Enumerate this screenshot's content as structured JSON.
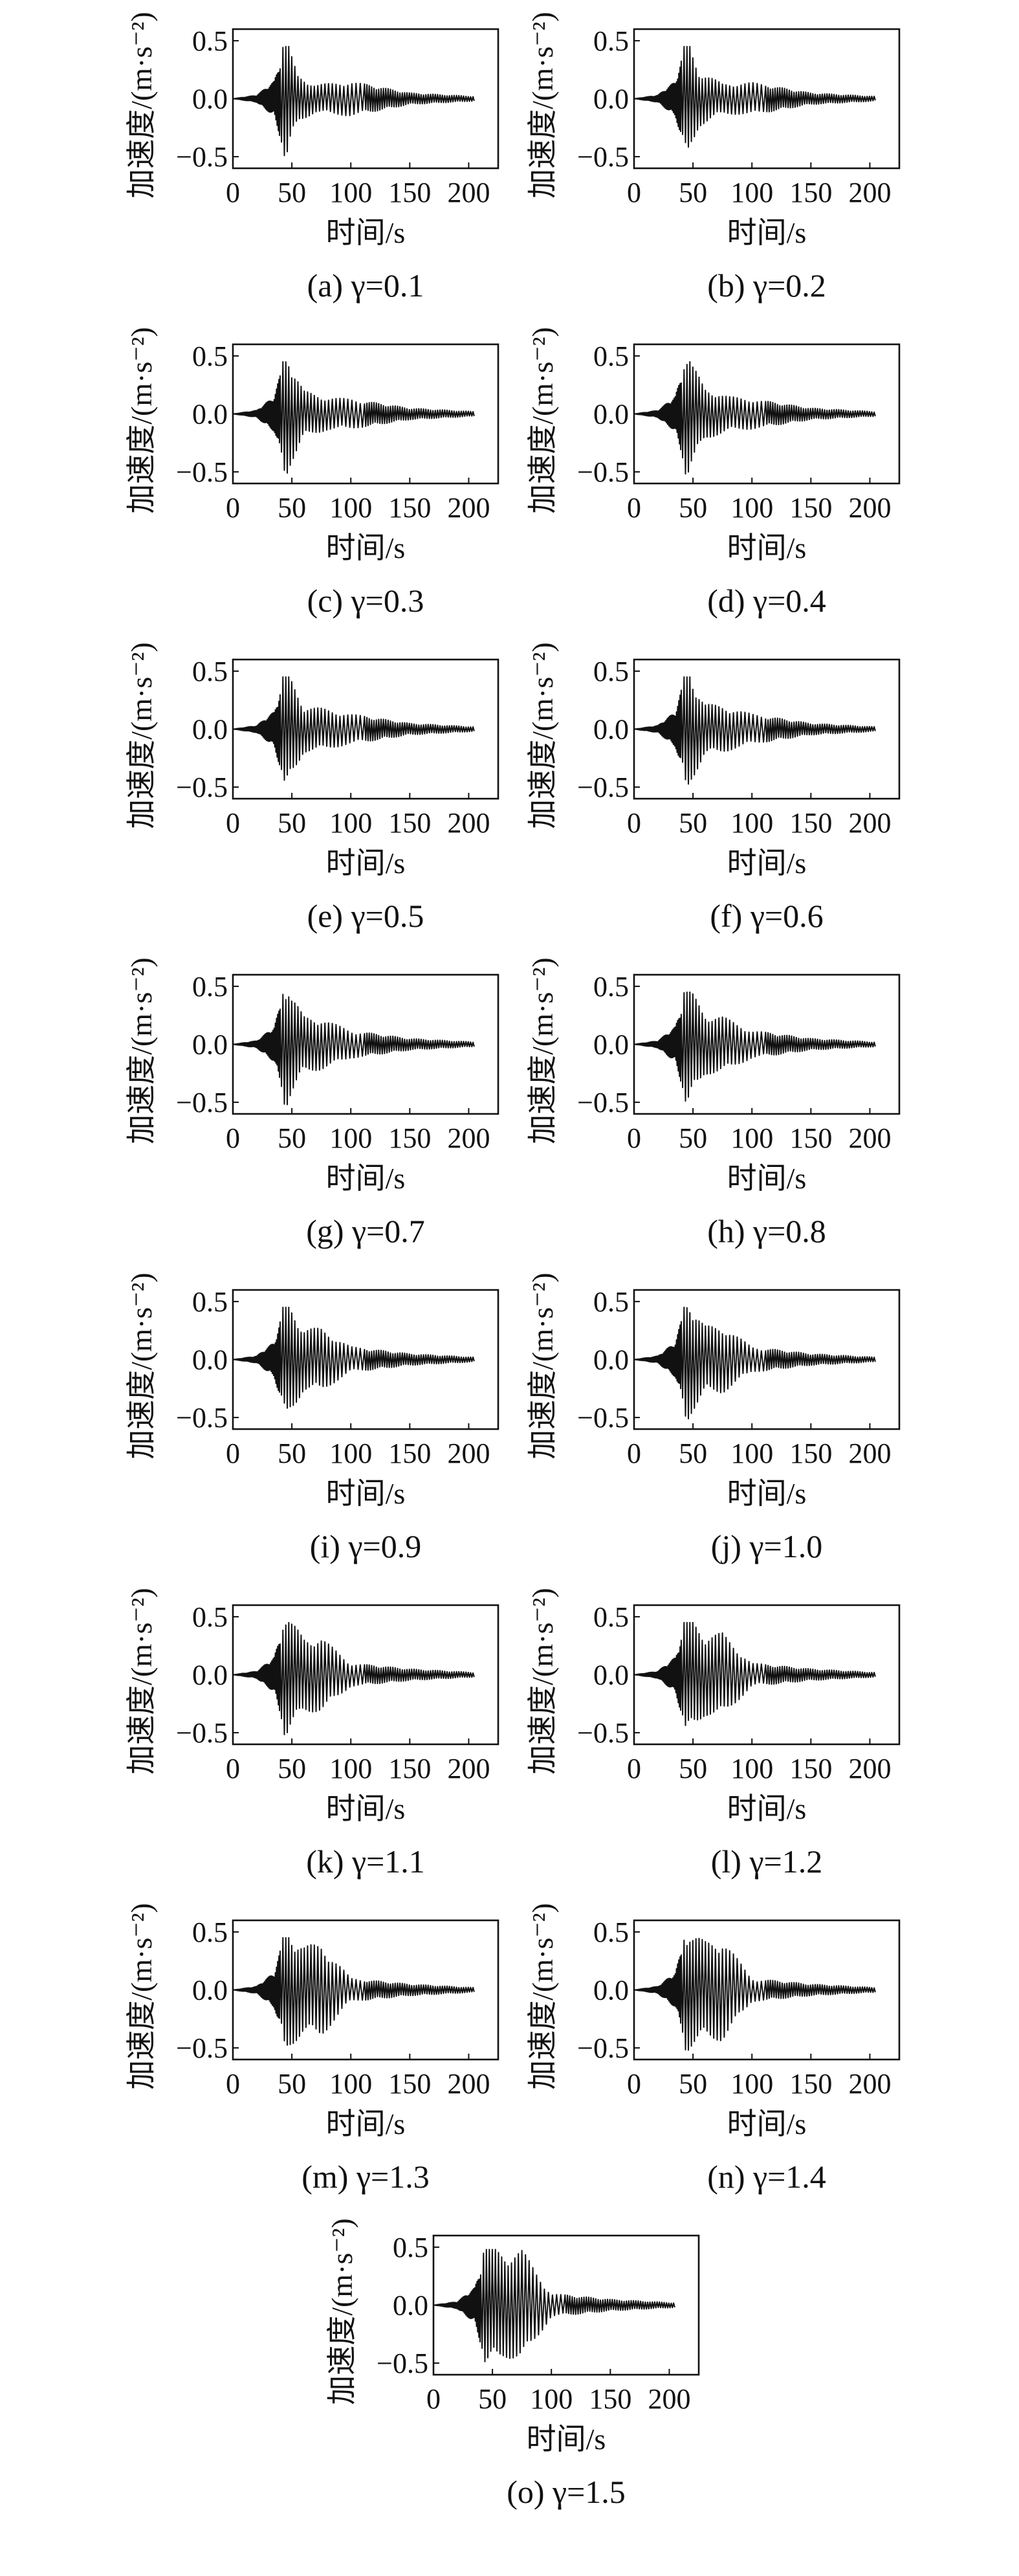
{
  "xlabel": "时间/s",
  "ylabel": "加速度/(m·s⁻²)",
  "xticks": [
    0,
    50,
    100,
    150,
    200
  ],
  "yticks": [
    0.5,
    0.0,
    -0.5
  ],
  "ytick_labels": [
    "0.5",
    "0.0",
    "−0.5"
  ],
  "xlim": [
    0,
    225
  ],
  "ylim": [
    -0.6,
    0.6
  ],
  "chart_data": [
    {
      "caption": "(a) γ=0.1",
      "type": "line",
      "gamma": 0.1,
      "xlabel": "时间/s",
      "ylabel": "加速度/(m·s⁻²)",
      "xlim": [
        0,
        225
      ],
      "ylim": [
        -0.6,
        0.6
      ],
      "t_range": [
        0,
        205
      ],
      "peak": 0.45,
      "trough": -0.52,
      "envelope": [
        {
          "t": 0,
          "a": 0.0
        },
        {
          "t": 20,
          "a": 0.03
        },
        {
          "t": 35,
          "a": 0.15
        },
        {
          "t": 45,
          "a": 0.52
        },
        {
          "t": 55,
          "a": 0.2
        },
        {
          "t": 70,
          "a": 0.12
        },
        {
          "t": 100,
          "a": 0.15
        },
        {
          "t": 150,
          "a": 0.05
        },
        {
          "t": 205,
          "a": 0.02
        }
      ]
    },
    {
      "caption": "(b) γ=0.2",
      "type": "line",
      "gamma": 0.2,
      "xlabel": "时间/s",
      "ylabel": "加速度/(m·s⁻²)",
      "xlim": [
        0,
        225
      ],
      "ylim": [
        -0.6,
        0.6
      ],
      "t_range": [
        0,
        205
      ],
      "peak": 0.45,
      "trough": -0.52,
      "envelope": [
        {
          "t": 0,
          "a": 0.0
        },
        {
          "t": 20,
          "a": 0.03
        },
        {
          "t": 35,
          "a": 0.15
        },
        {
          "t": 45,
          "a": 0.52
        },
        {
          "t": 55,
          "a": 0.24
        },
        {
          "t": 75,
          "a": 0.13
        },
        {
          "t": 100,
          "a": 0.14
        },
        {
          "t": 150,
          "a": 0.05
        },
        {
          "t": 205,
          "a": 0.02
        }
      ]
    },
    {
      "caption": "(c) γ=0.3",
      "type": "line",
      "gamma": 0.3,
      "xlabel": "时间/s",
      "ylabel": "加速度/(m·s⁻²)",
      "xlim": [
        0,
        225
      ],
      "ylim": [
        -0.6,
        0.6
      ],
      "t_range": [
        0,
        205
      ],
      "peak": 0.45,
      "trough": -0.52,
      "envelope": [
        {
          "t": 0,
          "a": 0.0
        },
        {
          "t": 20,
          "a": 0.03
        },
        {
          "t": 35,
          "a": 0.15
        },
        {
          "t": 45,
          "a": 0.52
        },
        {
          "t": 60,
          "a": 0.2
        },
        {
          "t": 80,
          "a": 0.14
        },
        {
          "t": 100,
          "a": 0.13
        },
        {
          "t": 150,
          "a": 0.05
        },
        {
          "t": 205,
          "a": 0.02
        }
      ]
    },
    {
      "caption": "(d) γ=0.4",
      "type": "line",
      "gamma": 0.4,
      "xlabel": "时间/s",
      "ylabel": "加速度/(m·s⁻²)",
      "xlim": [
        0,
        225
      ],
      "ylim": [
        -0.6,
        0.6
      ],
      "t_range": [
        0,
        205
      ],
      "peak": 0.45,
      "trough": -0.52,
      "envelope": [
        {
          "t": 0,
          "a": 0.0
        },
        {
          "t": 20,
          "a": 0.03
        },
        {
          "t": 35,
          "a": 0.15
        },
        {
          "t": 45,
          "a": 0.52
        },
        {
          "t": 60,
          "a": 0.22
        },
        {
          "t": 80,
          "a": 0.15
        },
        {
          "t": 100,
          "a": 0.13
        },
        {
          "t": 150,
          "a": 0.05
        },
        {
          "t": 205,
          "a": 0.02
        }
      ]
    },
    {
      "caption": "(e) γ=0.5",
      "type": "line",
      "gamma": 0.5,
      "xlabel": "时间/s",
      "ylabel": "加速度/(m·s⁻²)",
      "xlim": [
        0,
        225
      ],
      "ylim": [
        -0.6,
        0.6
      ],
      "t_range": [
        0,
        205
      ],
      "peak": 0.45,
      "trough": -0.52,
      "envelope": [
        {
          "t": 0,
          "a": 0.0
        },
        {
          "t": 20,
          "a": 0.03
        },
        {
          "t": 35,
          "a": 0.15
        },
        {
          "t": 45,
          "a": 0.52
        },
        {
          "t": 60,
          "a": 0.2
        },
        {
          "t": 75,
          "a": 0.18
        },
        {
          "t": 100,
          "a": 0.13
        },
        {
          "t": 150,
          "a": 0.05
        },
        {
          "t": 205,
          "a": 0.02
        }
      ]
    },
    {
      "caption": "(f) γ=0.6",
      "type": "line",
      "gamma": 0.6,
      "xlabel": "时间/s",
      "ylabel": "加速度/(m·s⁻²)",
      "xlim": [
        0,
        225
      ],
      "ylim": [
        -0.6,
        0.6
      ],
      "t_range": [
        0,
        205
      ],
      "peak": 0.45,
      "trough": -0.52,
      "envelope": [
        {
          "t": 0,
          "a": 0.0
        },
        {
          "t": 20,
          "a": 0.03
        },
        {
          "t": 35,
          "a": 0.15
        },
        {
          "t": 45,
          "a": 0.52
        },
        {
          "t": 60,
          "a": 0.22
        },
        {
          "t": 75,
          "a": 0.2
        },
        {
          "t": 100,
          "a": 0.13
        },
        {
          "t": 150,
          "a": 0.05
        },
        {
          "t": 205,
          "a": 0.02
        }
      ]
    },
    {
      "caption": "(g) γ=0.7",
      "type": "line",
      "gamma": 0.7,
      "xlabel": "时间/s",
      "ylabel": "加速度/(m·s⁻²)",
      "xlim": [
        0,
        225
      ],
      "ylim": [
        -0.6,
        0.6
      ],
      "t_range": [
        0,
        205
      ],
      "peak": 0.45,
      "trough": -0.52,
      "envelope": [
        {
          "t": 0,
          "a": 0.0
        },
        {
          "t": 20,
          "a": 0.03
        },
        {
          "t": 35,
          "a": 0.15
        },
        {
          "t": 45,
          "a": 0.52
        },
        {
          "t": 60,
          "a": 0.24
        },
        {
          "t": 75,
          "a": 0.22
        },
        {
          "t": 100,
          "a": 0.12
        },
        {
          "t": 150,
          "a": 0.05
        },
        {
          "t": 205,
          "a": 0.02
        }
      ]
    },
    {
      "caption": "(h) γ=0.8",
      "type": "line",
      "gamma": 0.8,
      "xlabel": "时间/s",
      "ylabel": "加速度/(m·s⁻²)",
      "xlim": [
        0,
        225
      ],
      "ylim": [
        -0.6,
        0.6
      ],
      "t_range": [
        0,
        205
      ],
      "peak": 0.45,
      "trough": -0.52,
      "envelope": [
        {
          "t": 0,
          "a": 0.0
        },
        {
          "t": 20,
          "a": 0.03
        },
        {
          "t": 35,
          "a": 0.15
        },
        {
          "t": 45,
          "a": 0.52
        },
        {
          "t": 60,
          "a": 0.26
        },
        {
          "t": 75,
          "a": 0.24
        },
        {
          "t": 100,
          "a": 0.12
        },
        {
          "t": 150,
          "a": 0.05
        },
        {
          "t": 205,
          "a": 0.02
        }
      ]
    },
    {
      "caption": "(i) γ=0.9",
      "type": "line",
      "gamma": 0.9,
      "xlabel": "时间/s",
      "ylabel": "加速度/(m·s⁻²)",
      "xlim": [
        0,
        225
      ],
      "ylim": [
        -0.6,
        0.6
      ],
      "t_range": [
        0,
        205
      ],
      "peak": 0.45,
      "trough": -0.52,
      "envelope": [
        {
          "t": 0,
          "a": 0.0
        },
        {
          "t": 20,
          "a": 0.03
        },
        {
          "t": 35,
          "a": 0.15
        },
        {
          "t": 45,
          "a": 0.52
        },
        {
          "t": 60,
          "a": 0.27
        },
        {
          "t": 75,
          "a": 0.27
        },
        {
          "t": 100,
          "a": 0.11
        },
        {
          "t": 150,
          "a": 0.05
        },
        {
          "t": 205,
          "a": 0.02
        }
      ]
    },
    {
      "caption": "(j) γ=1.0",
      "type": "line",
      "gamma": 1.0,
      "xlabel": "时间/s",
      "ylabel": "加速度/(m·s⁻²)",
      "xlim": [
        0,
        225
      ],
      "ylim": [
        -0.6,
        0.6
      ],
      "t_range": [
        0,
        205
      ],
      "peak": 0.45,
      "trough": -0.52,
      "envelope": [
        {
          "t": 0,
          "a": 0.0
        },
        {
          "t": 20,
          "a": 0.03
        },
        {
          "t": 35,
          "a": 0.15
        },
        {
          "t": 45,
          "a": 0.52
        },
        {
          "t": 60,
          "a": 0.29
        },
        {
          "t": 75,
          "a": 0.29
        },
        {
          "t": 100,
          "a": 0.11
        },
        {
          "t": 150,
          "a": 0.05
        },
        {
          "t": 205,
          "a": 0.02
        }
      ]
    },
    {
      "caption": "(k) γ=1.1",
      "type": "line",
      "gamma": 1.1,
      "xlabel": "时间/s",
      "ylabel": "加速度/(m·s⁻²)",
      "xlim": [
        0,
        225
      ],
      "ylim": [
        -0.6,
        0.6
      ],
      "t_range": [
        0,
        205
      ],
      "peak": 0.45,
      "trough": -0.52,
      "envelope": [
        {
          "t": 0,
          "a": 0.0
        },
        {
          "t": 20,
          "a": 0.03
        },
        {
          "t": 35,
          "a": 0.15
        },
        {
          "t": 45,
          "a": 0.52
        },
        {
          "t": 60,
          "a": 0.32
        },
        {
          "t": 75,
          "a": 0.32
        },
        {
          "t": 100,
          "a": 0.1
        },
        {
          "t": 150,
          "a": 0.05
        },
        {
          "t": 205,
          "a": 0.02
        }
      ]
    },
    {
      "caption": "(l) γ=1.2",
      "type": "line",
      "gamma": 1.2,
      "xlabel": "时间/s",
      "ylabel": "加速度/(m·s⁻²)",
      "xlim": [
        0,
        225
      ],
      "ylim": [
        -0.6,
        0.6
      ],
      "t_range": [
        0,
        205
      ],
      "peak": 0.45,
      "trough": -0.52,
      "envelope": [
        {
          "t": 0,
          "a": 0.0
        },
        {
          "t": 20,
          "a": 0.03
        },
        {
          "t": 35,
          "a": 0.15
        },
        {
          "t": 45,
          "a": 0.52
        },
        {
          "t": 60,
          "a": 0.35
        },
        {
          "t": 75,
          "a": 0.36
        },
        {
          "t": 100,
          "a": 0.1
        },
        {
          "t": 150,
          "a": 0.05
        },
        {
          "t": 205,
          "a": 0.02
        }
      ]
    },
    {
      "caption": "(m) γ=1.3",
      "type": "line",
      "gamma": 1.3,
      "xlabel": "时间/s",
      "ylabel": "加速度/(m·s⁻²)",
      "xlim": [
        0,
        225
      ],
      "ylim": [
        -0.6,
        0.6
      ],
      "t_range": [
        0,
        205
      ],
      "peak": 0.45,
      "trough": -0.52,
      "envelope": [
        {
          "t": 0,
          "a": 0.0
        },
        {
          "t": 20,
          "a": 0.03
        },
        {
          "t": 35,
          "a": 0.15
        },
        {
          "t": 45,
          "a": 0.52
        },
        {
          "t": 60,
          "a": 0.38
        },
        {
          "t": 75,
          "a": 0.4
        },
        {
          "t": 100,
          "a": 0.1
        },
        {
          "t": 150,
          "a": 0.05
        },
        {
          "t": 205,
          "a": 0.02
        }
      ]
    },
    {
      "caption": "(n) γ=1.4",
      "type": "line",
      "gamma": 1.4,
      "xlabel": "时间/s",
      "ylabel": "加速度/(m·s⁻²)",
      "xlim": [
        0,
        225
      ],
      "ylim": [
        -0.6,
        0.6
      ],
      "t_range": [
        0,
        205
      ],
      "peak": 0.45,
      "trough": -0.52,
      "envelope": [
        {
          "t": 0,
          "a": 0.0
        },
        {
          "t": 20,
          "a": 0.03
        },
        {
          "t": 35,
          "a": 0.15
        },
        {
          "t": 45,
          "a": 0.52
        },
        {
          "t": 60,
          "a": 0.42
        },
        {
          "t": 75,
          "a": 0.44
        },
        {
          "t": 100,
          "a": 0.1
        },
        {
          "t": 150,
          "a": 0.05
        },
        {
          "t": 205,
          "a": 0.02
        }
      ]
    },
    {
      "caption": "(o) γ=1.5",
      "type": "line",
      "gamma": 1.5,
      "xlabel": "时间/s",
      "ylabel": "加速度/(m·s⁻²)",
      "xlim": [
        0,
        225
      ],
      "ylim": [
        -0.6,
        0.6
      ],
      "t_range": [
        0,
        205
      ],
      "peak": 0.48,
      "trough": -0.52,
      "envelope": [
        {
          "t": 0,
          "a": 0.0
        },
        {
          "t": 20,
          "a": 0.03
        },
        {
          "t": 35,
          "a": 0.15
        },
        {
          "t": 45,
          "a": 0.52
        },
        {
          "t": 60,
          "a": 0.45
        },
        {
          "t": 75,
          "a": 0.48
        },
        {
          "t": 100,
          "a": 0.1
        },
        {
          "t": 150,
          "a": 0.05
        },
        {
          "t": 205,
          "a": 0.02
        }
      ]
    }
  ]
}
